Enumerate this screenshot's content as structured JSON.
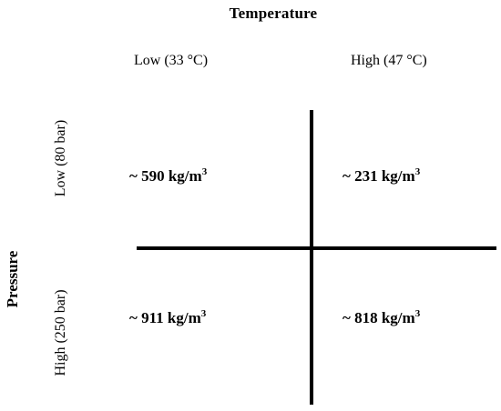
{
  "diagram": {
    "column_axis_title": "Temperature",
    "row_axis_title": "Pressure",
    "columns": [
      "Low (33 °C)",
      "High (47 °C)"
    ],
    "rows": [
      "Low (80 bar)",
      "High (250 bar)"
    ],
    "cells": {
      "low_pressure_low_temp": "~ 590 kg/m",
      "low_pressure_high_temp": "~ 231 kg/m",
      "high_pressure_low_temp": "~ 911 kg/m",
      "high_pressure_high_temp": "~ 818 kg/m"
    },
    "unit_exponent": "3"
  }
}
